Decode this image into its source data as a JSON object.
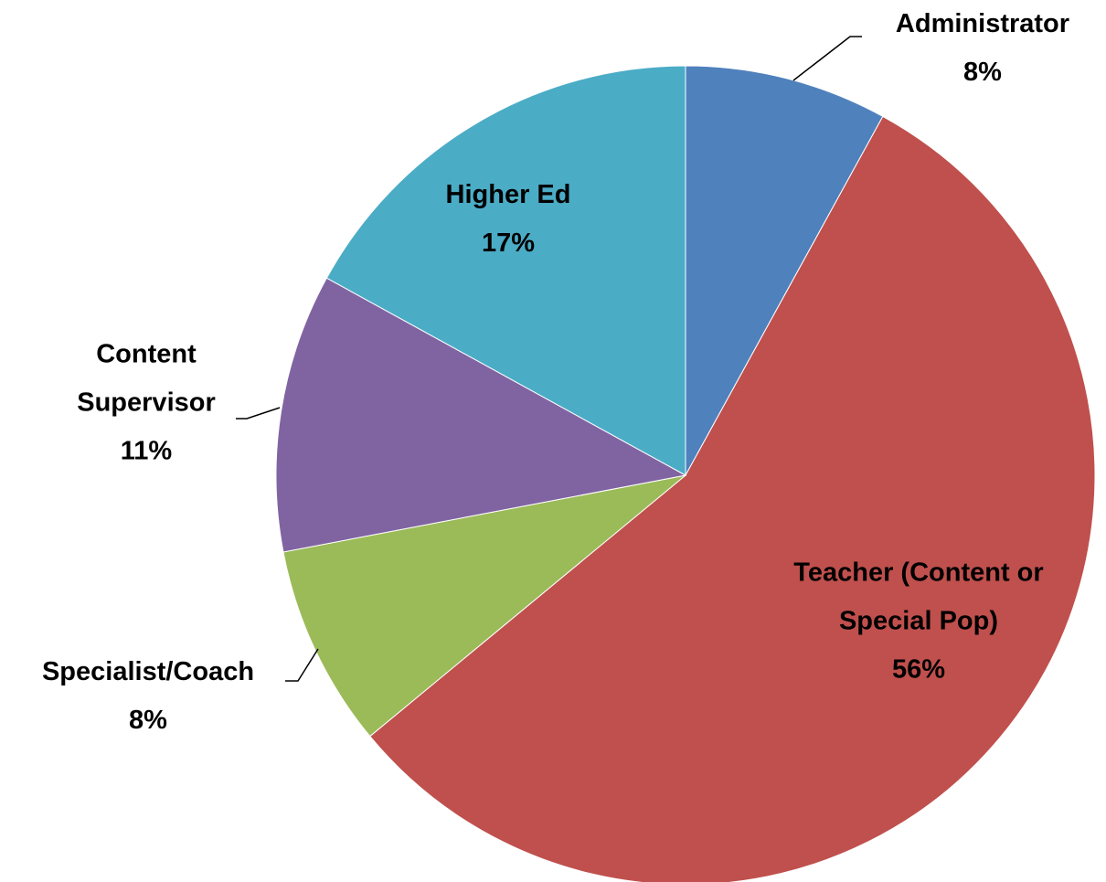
{
  "chart_data": {
    "type": "pie",
    "categories": [
      "Administrator",
      "Teacher (Content or Special Pop)",
      "Specialist/Coach",
      "Content Supervisor",
      "Higher Ed"
    ],
    "values": [
      8,
      56,
      8,
      11,
      17
    ],
    "value_labels": [
      "8%",
      "56%",
      "8%",
      "11%",
      "17%"
    ],
    "colors": [
      "#4f81bd",
      "#c0504d",
      "#9bbb59",
      "#8064a2",
      "#4bacc6"
    ]
  }
}
